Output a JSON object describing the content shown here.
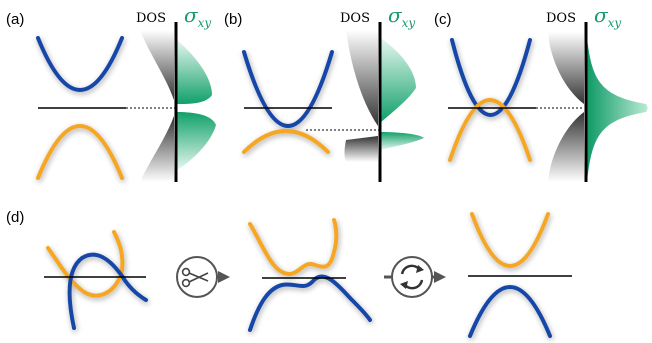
{
  "panels": {
    "a": {
      "label": "(a)"
    },
    "b": {
      "label": "(b)"
    },
    "c": {
      "label": "(c)"
    },
    "d": {
      "label": "(d)"
    }
  },
  "axis_labels": {
    "dos": "DOS",
    "sigma_symbol": "σ",
    "sigma_subscript": "xy"
  },
  "icons": {
    "step1": "scissors-icon",
    "step2": "refresh-icon"
  },
  "colors": {
    "band_blue": "#1446a8",
    "band_orange": "#f5a623",
    "hall_green": "#1a9a6a"
  }
}
